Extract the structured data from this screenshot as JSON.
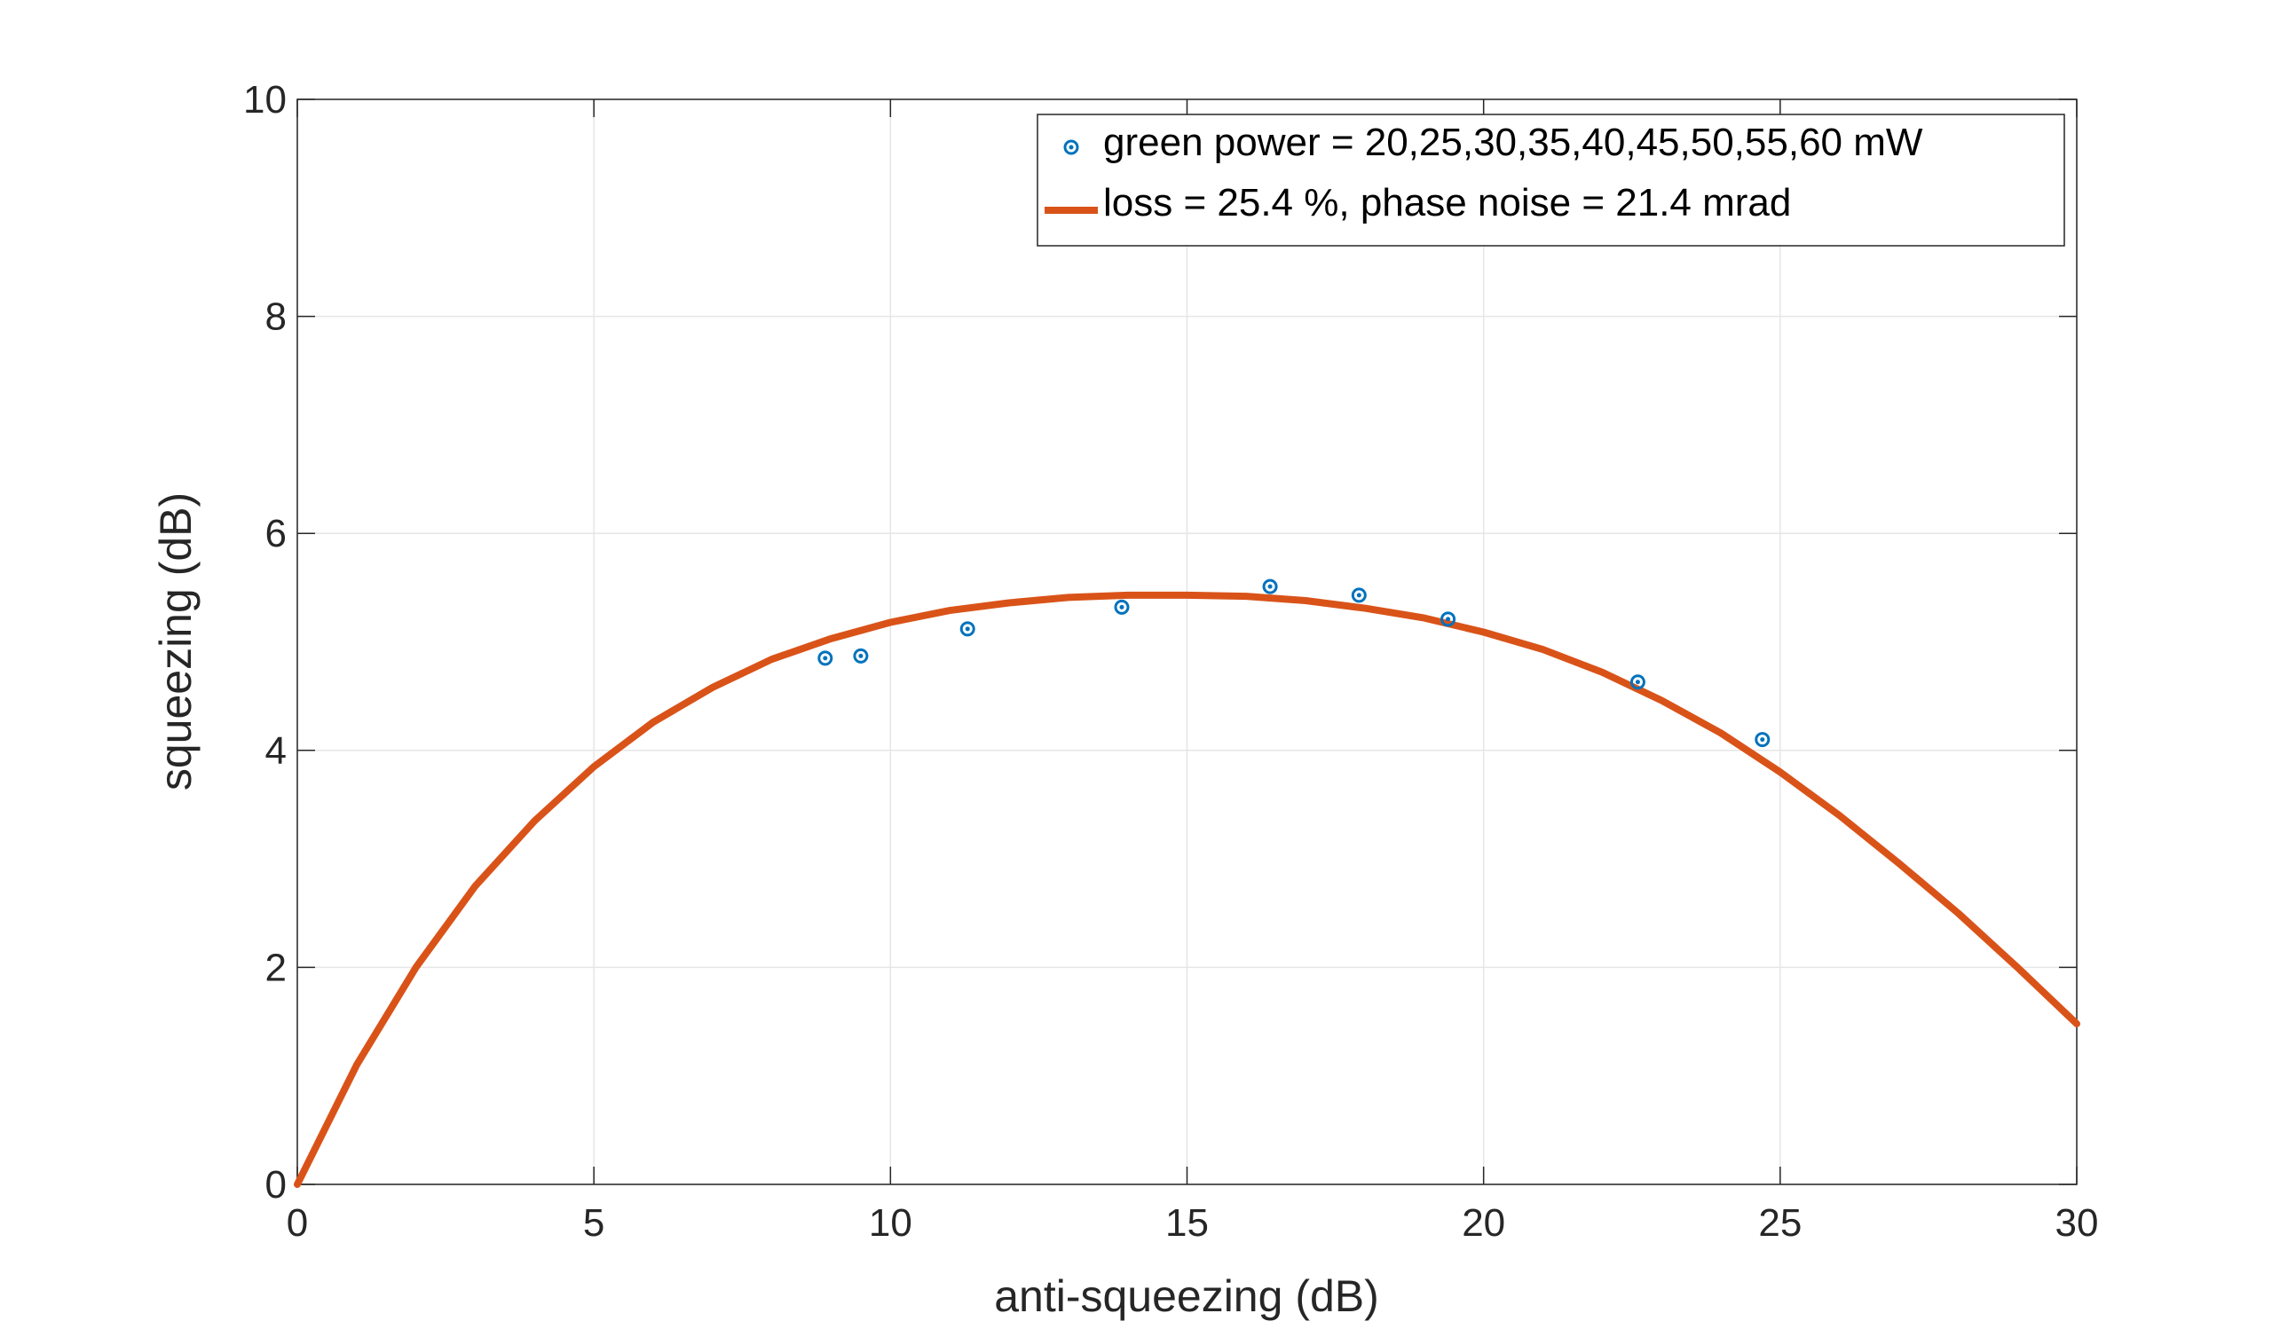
{
  "chart_data": {
    "type": "scatter",
    "xlabel": "anti-squeezing (dB)",
    "ylabel": "squeezing (dB)",
    "xlim": [
      0,
      30
    ],
    "ylim": [
      0,
      10
    ],
    "x_ticks": [
      "0",
      "5",
      "10",
      "15",
      "20",
      "25",
      "30"
    ],
    "y_ticks": [
      "0",
      "2",
      "4",
      "6",
      "8",
      "10"
    ],
    "grid": true,
    "legend_position": "top-right",
    "series": [
      {
        "name": "green power = 20,25,30,35,40,45,50,55,60 mW",
        "kind": "scatter",
        "color": "#0072BD",
        "x": [
          8.9,
          9.5,
          11.3,
          13.9,
          16.4,
          17.9,
          19.4,
          22.6,
          24.7
        ],
        "y": [
          4.85,
          4.87,
          5.12,
          5.32,
          5.51,
          5.43,
          5.21,
          4.63,
          4.1
        ]
      },
      {
        "name": "loss = 25.4 %, phase noise = 21.4 mrad",
        "kind": "line",
        "color": "#D95319",
        "x": [
          0,
          1,
          2,
          3,
          4,
          5,
          6,
          7,
          8,
          9,
          10,
          11,
          12,
          13,
          14,
          15,
          16,
          17,
          18,
          19,
          20,
          21,
          22,
          23,
          24,
          25,
          26,
          27,
          28,
          29,
          30
        ],
        "y": [
          0,
          1.1,
          2.0,
          2.75,
          3.35,
          3.85,
          4.26,
          4.58,
          4.84,
          5.03,
          5.18,
          5.29,
          5.36,
          5.41,
          5.43,
          5.43,
          5.42,
          5.38,
          5.31,
          5.22,
          5.09,
          4.93,
          4.72,
          4.46,
          4.16,
          3.8,
          3.4,
          2.96,
          2.5,
          2.0,
          1.48
        ]
      }
    ]
  }
}
